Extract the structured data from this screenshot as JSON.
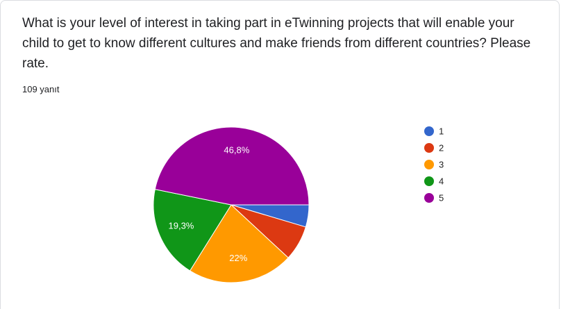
{
  "chart_data": {
    "type": "pie",
    "title": "What is your level of interest in taking part in eTwinning projects that will enable your child to get to know different cultures and make friends from different countries? Please rate.",
    "subtitle": "109 yanıt",
    "categories": [
      "1",
      "2",
      "3",
      "4",
      "5"
    ],
    "values": [
      4.6,
      7.3,
      22,
      19.3,
      46.8
    ],
    "value_labels": [
      null,
      null,
      "22%",
      "19,3%",
      "46,8%"
    ],
    "colors": [
      "#3366cc",
      "#dc3912",
      "#ff9900",
      "#109618",
      "#990099"
    ],
    "legend": "right"
  }
}
